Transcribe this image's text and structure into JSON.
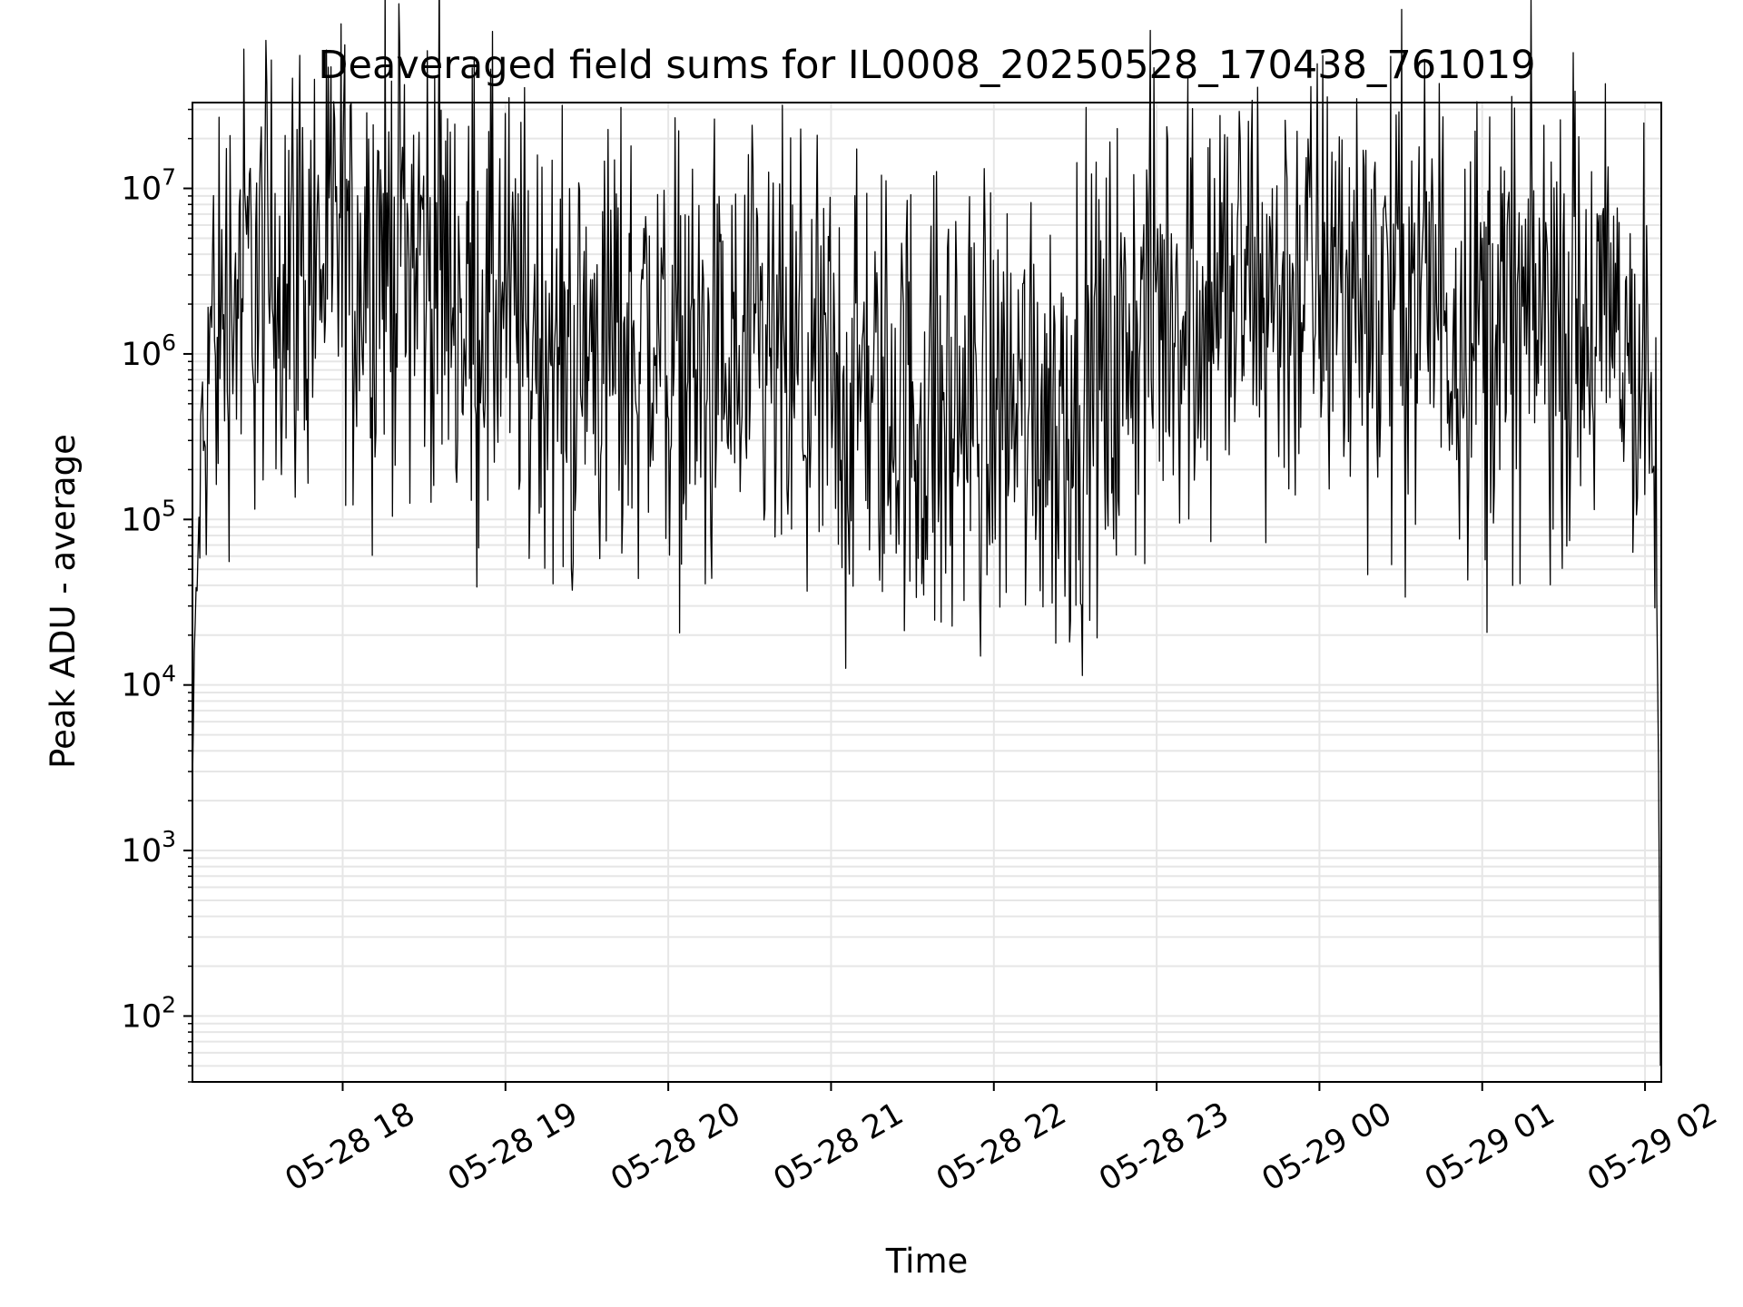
{
  "chart_data": {
    "type": "line",
    "title": "Deaveraged field sums for IL0008_20250528_170438_761019",
    "xlabel": "Time",
    "ylabel": "Peak ADU - average",
    "yscale": "log",
    "ylim": [
      40,
      33000000
    ],
    "xlim": [
      "2025-05-28 17:04:38",
      "2025-05-29 02:06:00"
    ],
    "grid": true,
    "line_color": "#000000",
    "grid_color": "#e6e6e6",
    "x_ticks": [
      {
        "value": "2025-05-28 18:00",
        "label": "05-28 18"
      },
      {
        "value": "2025-05-28 19:00",
        "label": "05-28 19"
      },
      {
        "value": "2025-05-28 20:00",
        "label": "05-28 20"
      },
      {
        "value": "2025-05-28 21:00",
        "label": "05-28 21"
      },
      {
        "value": "2025-05-28 22:00",
        "label": "05-28 22"
      },
      {
        "value": "2025-05-28 23:00",
        "label": "05-28 23"
      },
      {
        "value": "2025-05-29 00:00",
        "label": "05-29 00"
      },
      {
        "value": "2025-05-29 01:00",
        "label": "05-29 01"
      },
      {
        "value": "2025-05-29 02:00",
        "label": "05-29 02"
      }
    ],
    "y_ticks": [
      {
        "value": 100,
        "base": "10",
        "exp": "2"
      },
      {
        "value": 1000,
        "base": "10",
        "exp": "3"
      },
      {
        "value": 10000,
        "base": "10",
        "exp": "4"
      },
      {
        "value": 100000,
        "base": "10",
        "exp": "5"
      },
      {
        "value": 1000000,
        "base": "10",
        "exp": "6"
      },
      {
        "value": 10000000,
        "base": "10",
        "exp": "7"
      }
    ],
    "series": [
      {
        "x": [
          "2025-05-28 17:04:38",
          "2025-05-28 17:05:30",
          "2025-05-28 17:06:30",
          "2025-05-28 17:07:30",
          "2025-05-28 17:09:00",
          "2025-05-28 17:11:00",
          "2025-05-28 17:15:00",
          "2025-05-28 17:25:00",
          "2025-05-28 17:40:00",
          "2025-05-28 17:55:00",
          "2025-05-28 18:10:00",
          "2025-05-28 18:25:00",
          "2025-05-28 18:40:00",
          "2025-05-28 18:55:00",
          "2025-05-28 19:10:00",
          "2025-05-28 19:25:00",
          "2025-05-28 19:40:00",
          "2025-05-28 19:55:00",
          "2025-05-28 20:10:00",
          "2025-05-28 20:25:00",
          "2025-05-28 20:40:00",
          "2025-05-28 20:55:00",
          "2025-05-28 21:10:00",
          "2025-05-28 21:25:00",
          "2025-05-28 21:40:00",
          "2025-05-28 21:55:00",
          "2025-05-28 22:10:00",
          "2025-05-28 22:25:00",
          "2025-05-28 22:40:00",
          "2025-05-28 22:55:00",
          "2025-05-28 23:10:00",
          "2025-05-28 23:25:00",
          "2025-05-28 23:40:00",
          "2025-05-28 23:55:00",
          "2025-05-29 00:10:00",
          "2025-05-29 00:25:00",
          "2025-05-29 00:40:00",
          "2025-05-29 00:55:00",
          "2025-05-29 01:10:00",
          "2025-05-29 01:25:00",
          "2025-05-29 01:40:00",
          "2025-05-29 01:50:00",
          "2025-05-29 01:56:00",
          "2025-05-29 02:00:00",
          "2025-05-29 02:02:30",
          "2025-05-29 02:04:00",
          "2025-05-29 02:05:00",
          "2025-05-29 02:05:40"
        ],
        "y": [
          2500,
          20000,
          50000,
          150000,
          400000,
          1200000,
          2000000,
          3000000,
          3500000,
          4000000,
          4500000,
          5000000,
          3000000,
          2000000,
          1500000,
          1000000,
          1200000,
          1300000,
          900000,
          700000,
          800000,
          700000,
          600000,
          500000,
          450000,
          500000,
          600000,
          500000,
          700000,
          1500000,
          2500000,
          2500000,
          2200000,
          2600000,
          2800000,
          2600000,
          2500000,
          1800000,
          1500000,
          1800000,
          1700000,
          1500000,
          1000000,
          700000,
          500000,
          100000,
          3000,
          50
        ],
        "noise_decades": 0.7
      }
    ]
  }
}
